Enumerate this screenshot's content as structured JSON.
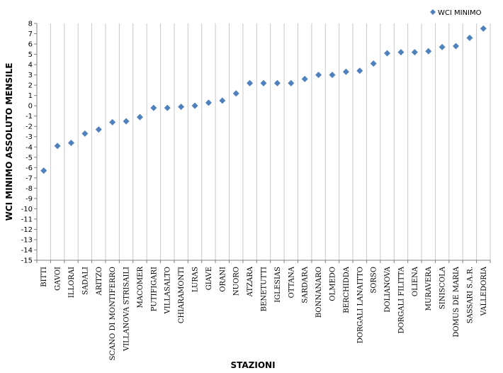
{
  "chart_data": {
    "type": "scatter",
    "xlabel": "STAZIONI",
    "ylabel": "WCI MINIMO ASSOLUTO MENSILE",
    "ylim": [
      -15,
      8
    ],
    "y_step": 1,
    "grid": "vertical",
    "legend_position": "top-right",
    "marker_color": "#4f81bd",
    "categories": [
      "BITTI",
      "GAVOI",
      "ILLORAI",
      "SADALI",
      "ARITZO",
      "SCANO DI MONTIFERRO",
      "VILLANOVA STRISAILI",
      "MACOMER",
      "PUTIFIGARI",
      "VILLASALTO",
      "CHIARAMONTI",
      "LURAS",
      "GIAVE",
      "ORANI",
      "NUORO",
      "ATZARA",
      "BENETUTTI",
      "IGLESIAS",
      "OTTANA",
      "SARDARA",
      "BONNANARO",
      "OLMEDO",
      "BERCHIDDA",
      "DORGALI LANAITTO",
      "SORSO",
      "DOLIANOVA",
      "DORGALI FILITTA",
      "OLIENA",
      "MURAVERA",
      "SINISCOLA",
      "DOMUS DE MARIA",
      "SASSARI S.A.R.",
      "VALLEDORIA"
    ],
    "series": [
      {
        "name": "WCI MINIMO",
        "values": [
          -6.3,
          -3.9,
          -3.6,
          -2.7,
          -2.3,
          -1.6,
          -1.5,
          -1.1,
          -0.2,
          -0.2,
          -0.1,
          0.0,
          0.3,
          0.5,
          1.2,
          2.2,
          2.2,
          2.2,
          2.2,
          2.6,
          3.0,
          3.0,
          3.3,
          3.4,
          4.1,
          5.1,
          5.2,
          5.2,
          5.3,
          5.7,
          5.8,
          6.6,
          7.5
        ]
      }
    ]
  }
}
